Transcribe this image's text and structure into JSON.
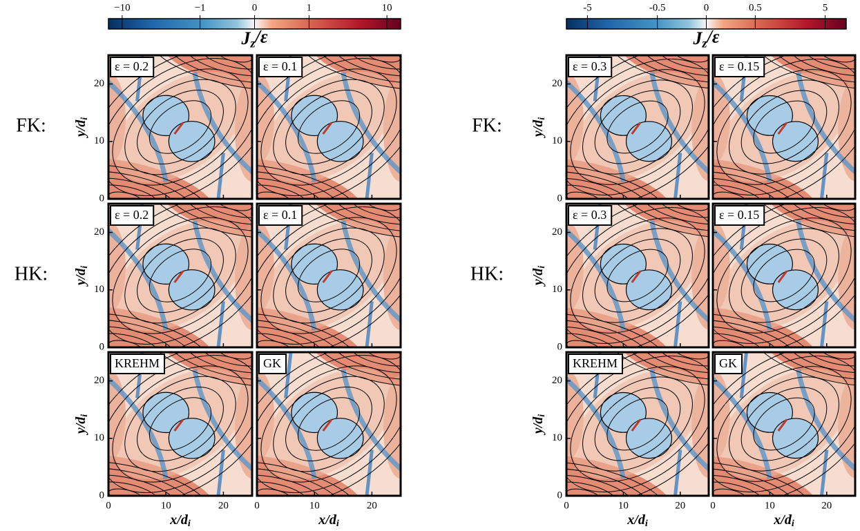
{
  "chart_data": [
    {
      "type": "heatmap",
      "colorbar": {
        "label": "J_z/ε",
        "scale": "symlog",
        "linthresh": 1,
        "clim": [
          -15,
          15
        ],
        "ticks": [
          {
            "value": -10,
            "label": "−10"
          },
          {
            "value": -1,
            "label": "−1"
          },
          0,
          1,
          10
        ]
      },
      "row_labels": [
        "FK:",
        "HK:",
        null
      ],
      "panels": [
        [
          "ε = 0.2",
          "ε = 0.1"
        ],
        [
          "ε = 0.2",
          "ε = 0.1"
        ],
        [
          "KREHM",
          "GK"
        ]
      ],
      "xlabel": "x/d_i",
      "ylabel": "y/d_i",
      "xlim": [
        0,
        25
      ],
      "ylim": [
        0,
        25
      ],
      "xticks": [
        0,
        10,
        20
      ],
      "yticks": [
        0,
        10,
        20
      ]
    },
    {
      "type": "heatmap",
      "colorbar": {
        "label": "J_z/ε",
        "scale": "symlog",
        "linthresh": 0.5,
        "clim": [
          -10,
          10
        ],
        "ticks": [
          -5,
          -0.5,
          0,
          0.5,
          5
        ]
      },
      "row_labels": [
        "FK:",
        "HK:",
        null
      ],
      "panels": [
        [
          "ε = 0.3",
          "ε = 0.15"
        ],
        [
          "ε = 0.3",
          "ε = 0.15"
        ],
        [
          "KREHM",
          "GK"
        ]
      ],
      "xlabel": "x/d_i",
      "ylabel": "y/d_i",
      "xlim": [
        0,
        25
      ],
      "ylim": [
        0,
        25
      ],
      "xticks": [
        0,
        10,
        20
      ],
      "yticks": [
        0,
        10,
        20
      ]
    }
  ]
}
